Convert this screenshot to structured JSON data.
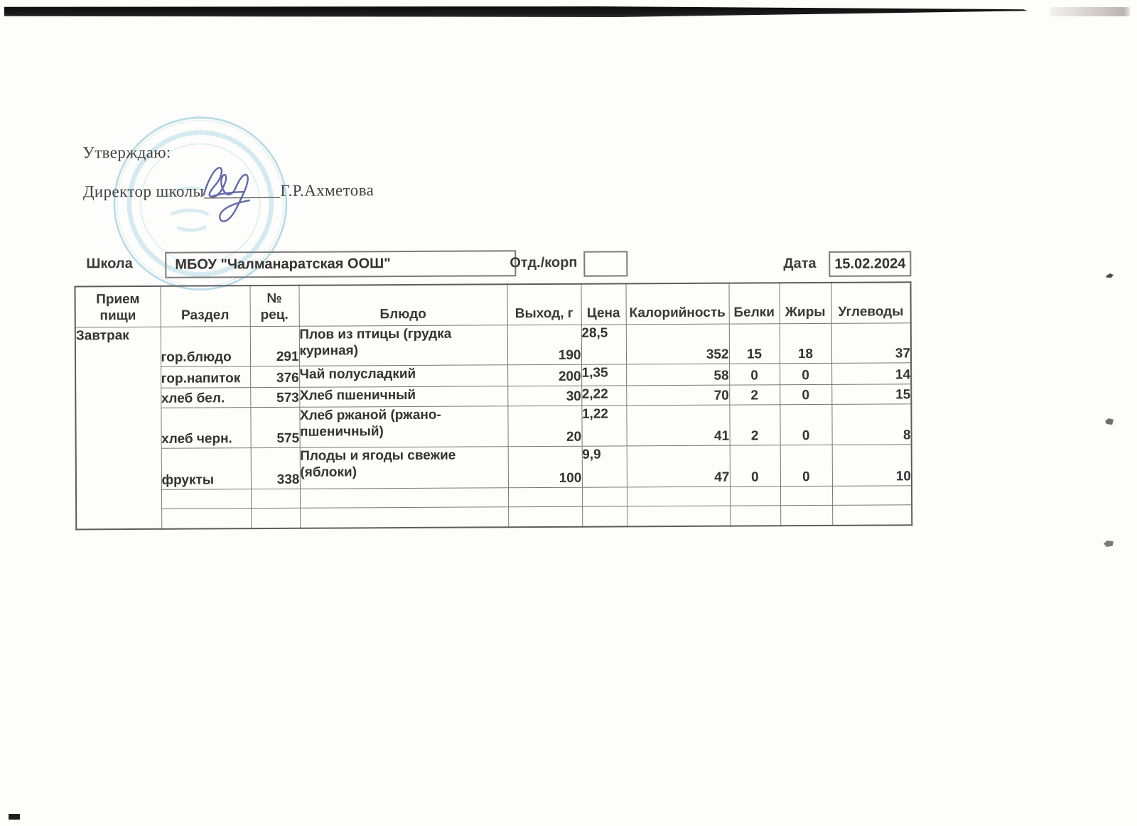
{
  "header": {
    "approve_label": "Утверждаю:",
    "director": {
      "prefix": "Директор школы",
      "underscores": "_________",
      "name": "Г.Р.Ахметова"
    }
  },
  "form": {
    "school_label": "Школа",
    "school_value": "МБОУ \"Чалманаратская ООШ\"",
    "dept_label": "Отд./корп",
    "dept_value": "",
    "date_label": "Дата",
    "date_value": "15.02.2024"
  },
  "table": {
    "headers": [
      "Прием пищи",
      "Раздел",
      "№ рец.",
      "Блюдо",
      "Выход, г",
      "Цена",
      "Калорийность",
      "Белки",
      "Жиры",
      "Углеводы"
    ],
    "meal": "Завтрак",
    "rows": [
      {
        "razdel": "гор.блюдо",
        "rec": "291",
        "dish": "Плов из птицы (грудка куриная)",
        "out": "190",
        "price": "28,5",
        "kcal": "352",
        "protein": "15",
        "fat": "18",
        "carbs": "37"
      },
      {
        "razdel": "гор.напиток",
        "rec": "376",
        "dish": "Чай полусладкий",
        "out": "200",
        "price": "1,35",
        "kcal": "58",
        "protein": "0",
        "fat": "0",
        "carbs": "14"
      },
      {
        "razdel": "хлеб бел.",
        "rec": "573",
        "dish": "Хлеб пшеничный",
        "out": "30",
        "price": "2,22",
        "kcal": "70",
        "protein": "2",
        "fat": "0",
        "carbs": "15"
      },
      {
        "razdel": "хлеб черн.",
        "rec": "575",
        "dish": "Хлеб ржаной (ржано-пшеничный)",
        "out": "20",
        "price": "1,22",
        "kcal": "41",
        "protein": "2",
        "fat": "0",
        "carbs": "8"
      },
      {
        "razdel": "фрукты",
        "rec": "338",
        "dish": "Плоды и ягоды свежие (яблоки)",
        "out": "100",
        "price": "9,9",
        "kcal": "47",
        "protein": "0",
        "fat": "0",
        "carbs": "10"
      },
      {
        "razdel": "",
        "rec": "",
        "dish": "",
        "out": "",
        "price": "",
        "kcal": "",
        "protein": "",
        "fat": "",
        "carbs": ""
      },
      {
        "razdel": "",
        "rec": "",
        "dish": "",
        "out": "",
        "price": "",
        "kcal": "",
        "protein": "",
        "fat": "",
        "carbs": ""
      }
    ]
  },
  "colors": {
    "signature_blue": "#4c55a0",
    "stamp_blue": "#6db9d3",
    "border_gray": "#787878",
    "paper": "#fdfdfb"
  }
}
